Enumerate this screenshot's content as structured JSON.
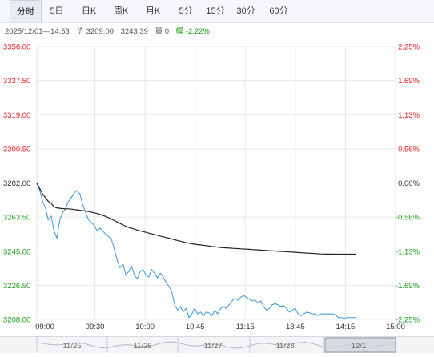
{
  "tabs": [
    "分时",
    "5日",
    "日K",
    "周K",
    "月K",
    "5分",
    "15分",
    "30分",
    "60分"
  ],
  "active_tab": 0,
  "info": {
    "datetime": "2025/12/01—14:53",
    "price": "价 3209.00",
    "avg": "3243.39",
    "volume": "量 0",
    "change": "幅 -2.22%"
  },
  "colors": {
    "price_line": "#3a95d8",
    "avg_line": "#222222",
    "up_label": "#e02020",
    "down_label": "#1a9c1a",
    "neutral_label": "#333333",
    "grid": "#e8e8e8"
  },
  "nav": {
    "dates": [
      "11/25",
      "11/26",
      "11/27",
      "11/28",
      "12/1"
    ]
  },
  "chart_data": {
    "type": "line",
    "y_left_ticks": [
      "3356.00",
      "3337.50",
      "3319.00",
      "3300.50",
      "3282.00",
      "3263.50",
      "3245.00",
      "3226.50",
      "3208.00"
    ],
    "y_right_ticks": [
      "2.25%",
      "1.69%",
      "1.13%",
      "0.56%",
      "0.00%",
      "-0.56%",
      "-1.13%",
      "-1.69%",
      "-2.25%"
    ],
    "x_ticks": [
      "09:00",
      "09:30",
      "10:00",
      "10:45",
      "11:15",
      "13:45",
      "14:15",
      "15:00"
    ],
    "ylim": [
      3208.0,
      3356.0
    ],
    "reference": 3282.0,
    "grid": true,
    "series": [
      {
        "values": [
          3282.0,
          3278.0,
          3272.0,
          3268.5,
          3262.0,
          3264.0,
          3256.0,
          3252.0,
          3262.0,
          3266.0,
          3268.0,
          3272.0,
          3274.0,
          3276.5,
          3278.0,
          3276.0,
          3270.0,
          3266.0,
          3262.0,
          3260.5,
          3259.0,
          3256.0,
          3257.5,
          3256.0,
          3254.0,
          3253.0,
          3251.5,
          3246.0,
          3240.0,
          3236.0,
          3238.0,
          3232.0,
          3234.0,
          3237.0,
          3232.0,
          3230.0,
          3234.0,
          3235.0,
          3232.0,
          3231.0,
          3235.0,
          3233.0,
          3230.5,
          3233.0,
          3231.0,
          3228.0,
          3226.0,
          3223.0,
          3216.0,
          3213.0,
          3215.0,
          3212.0,
          3214.0,
          3209.0,
          3211.0,
          3214.0,
          3211.0,
          3212.0,
          3210.0,
          3212.0,
          3211.5,
          3210.0,
          3213.0,
          3211.0,
          3214.0,
          3215.0,
          3214.0,
          3216.0,
          3218.0,
          3219.5,
          3218.5,
          3220.0,
          3221.0,
          3220.0,
          3219.0,
          3218.0,
          3218.5,
          3217.0,
          3218.0,
          3215.0,
          3213.0,
          3214.0,
          3216.0,
          3216.5,
          3216.0,
          3215.0,
          3215.5,
          3214.0,
          3212.0,
          3213.0,
          3214.0,
          3211.0,
          3210.0,
          3211.0,
          3212.0,
          3211.5,
          3211.0,
          3211.0,
          3210.0,
          3211.0,
          3211.0,
          3211.0,
          3211.0,
          3211.0,
          3210.5,
          3209.0,
          3209.0,
          3208.5,
          3209.0,
          3209.0,
          3209.0,
          3209.0
        ],
        "color": "#3a95d8"
      },
      {
        "values": [
          3282.0,
          3279.0,
          3276.0,
          3274.0,
          3272.0,
          3271.0,
          3269.0,
          3268.5,
          3268.3,
          3268.1,
          3268.0,
          3268.0,
          3267.8,
          3267.6,
          3267.4,
          3267.2,
          3267.0,
          3266.8,
          3266.5,
          3266.2,
          3265.8,
          3265.4,
          3265.0,
          3264.4,
          3263.8,
          3263.1,
          3262.4,
          3261.6,
          3260.8,
          3260.0,
          3259.2,
          3258.5,
          3257.9,
          3257.4,
          3257.0,
          3256.5,
          3256.0,
          3255.6,
          3255.2,
          3254.8,
          3254.4,
          3254.0,
          3253.6,
          3253.2,
          3252.8,
          3252.4,
          3252.0,
          3251.6,
          3251.2,
          3250.8,
          3250.4,
          3250.0,
          3249.6,
          3249.3,
          3249.0,
          3248.8,
          3248.6,
          3248.4,
          3248.2,
          3248.0,
          3247.8,
          3247.6,
          3247.4,
          3247.2,
          3247.0,
          3246.9,
          3246.8,
          3246.7,
          3246.6,
          3246.5,
          3246.4,
          3246.3,
          3246.2,
          3246.1,
          3246.0,
          3245.9,
          3245.8,
          3245.7,
          3245.6,
          3245.5,
          3245.4,
          3245.3,
          3245.2,
          3245.1,
          3245.0,
          3244.9,
          3244.8,
          3244.7,
          3244.6,
          3244.5,
          3244.4,
          3244.3,
          3244.2,
          3244.1,
          3244.0,
          3243.9,
          3243.8,
          3243.7,
          3243.6,
          3243.5,
          3243.45,
          3243.4,
          3243.4,
          3243.4,
          3243.39,
          3243.39,
          3243.39,
          3243.39,
          3243.39,
          3243.39,
          3243.39,
          3243.39
        ],
        "color": "#222222"
      }
    ]
  }
}
